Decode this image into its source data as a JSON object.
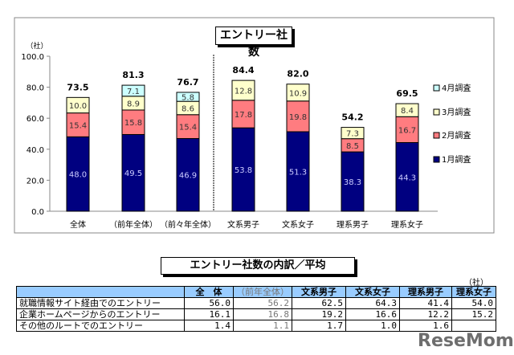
{
  "chart_data": {
    "type": "bar",
    "stacked": true,
    "title": "エントリー社数",
    "ylabel": "（社）",
    "ylim": [
      0,
      100
    ],
    "yticks": [
      "0.0",
      "20.0",
      "40.0",
      "60.0",
      "80.0",
      "100.0"
    ],
    "categories": [
      "全体",
      "（前年全体）",
      "（前々年全体）",
      "文系男子",
      "文系女子",
      "理系男子",
      "理系女子"
    ],
    "series": [
      {
        "name": "1月調査",
        "color": "#000080",
        "values": [
          48.0,
          49.5,
          46.9,
          53.8,
          51.3,
          38.3,
          44.3
        ]
      },
      {
        "name": "2月調査",
        "color": "#ff7c80",
        "values": [
          15.4,
          15.8,
          15.4,
          17.8,
          19.8,
          8.5,
          16.7
        ]
      },
      {
        "name": "3月調査",
        "color": "#ffffcc",
        "values": [
          10.0,
          8.9,
          8.6,
          12.8,
          10.9,
          7.3,
          8.4
        ]
      },
      {
        "name": "4月調査",
        "color": "#ccffff",
        "values": [
          null,
          7.1,
          5.8,
          null,
          null,
          null,
          null
        ]
      }
    ],
    "totals": [
      "73.5",
      "81.3",
      "76.7",
      "84.4",
      "82.0",
      "54.2",
      "69.5"
    ],
    "legend": "right",
    "grid": false
  },
  "table": {
    "title": "エントリー社数の内訳／平均",
    "unit": "（社）",
    "headers": [
      "",
      "全　体",
      "（前年全体）",
      "文系男子",
      "文系女子",
      "理系男子",
      "理系女子"
    ],
    "rows": [
      [
        "就職情報サイト経由でのエントリー",
        "56.0",
        "56.2",
        "62.5",
        "64.3",
        "41.4",
        "54.0"
      ],
      [
        "企業ホームページからのエントリー",
        "16.1",
        "16.8",
        "19.2",
        "16.6",
        "12.2",
        "15.2"
      ],
      [
        "その他のルートでのエントリー",
        "1.4",
        "1.1",
        "1.7",
        "1.0",
        "1.6",
        ""
      ]
    ]
  },
  "watermark": "ReseMom"
}
